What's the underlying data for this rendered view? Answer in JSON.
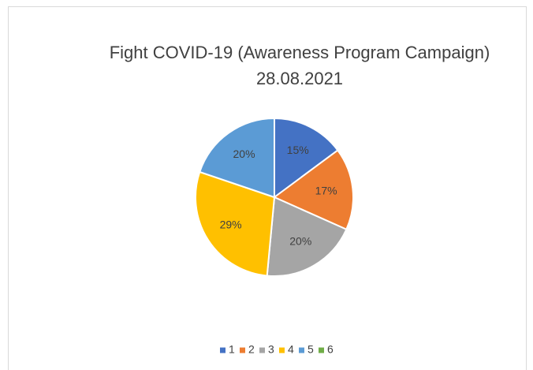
{
  "chart_data": {
    "type": "pie",
    "title": "Fight COVID-19 (Awareness Program Campaign)",
    "subtitle": "28.08.2021",
    "categories": [
      "1",
      "2",
      "3",
      "4",
      "5",
      "6"
    ],
    "values": [
      15,
      17,
      20,
      29,
      20,
      0
    ],
    "value_labels": [
      "15%",
      "17%",
      "20%",
      "29%",
      "20%",
      null
    ],
    "colors": [
      "#4472c4",
      "#ed7d31",
      "#a5a5a5",
      "#ffc000",
      "#5b9bd5",
      "#70ad47"
    ],
    "legend": "bottom"
  }
}
